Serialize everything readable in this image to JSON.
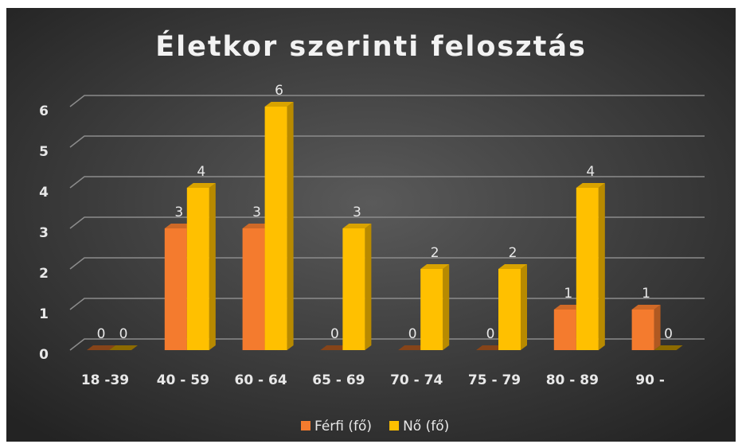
{
  "chart_data": {
    "type": "bar3d",
    "title": "Életkor szerinti felosztás",
    "categories": [
      "18 -39",
      "40 - 59",
      "60 - 64",
      "65 - 69",
      "70 - 74",
      "75 - 79",
      "80 - 89",
      "90 -"
    ],
    "series": [
      {
        "name": "Férfi (fő)",
        "color": "#f47b2e",
        "values": [
          0,
          3,
          3,
          0,
          0,
          0,
          1,
          1
        ]
      },
      {
        "name": "Nő (fő)",
        "color": "#ffc000",
        "values": [
          0,
          4,
          6,
          3,
          2,
          2,
          4,
          0
        ]
      }
    ],
    "ylim": [
      0,
      6
    ],
    "yticks": [
      0,
      1,
      2,
      3,
      4,
      5,
      6
    ],
    "grid": true,
    "legend": "bottom"
  }
}
